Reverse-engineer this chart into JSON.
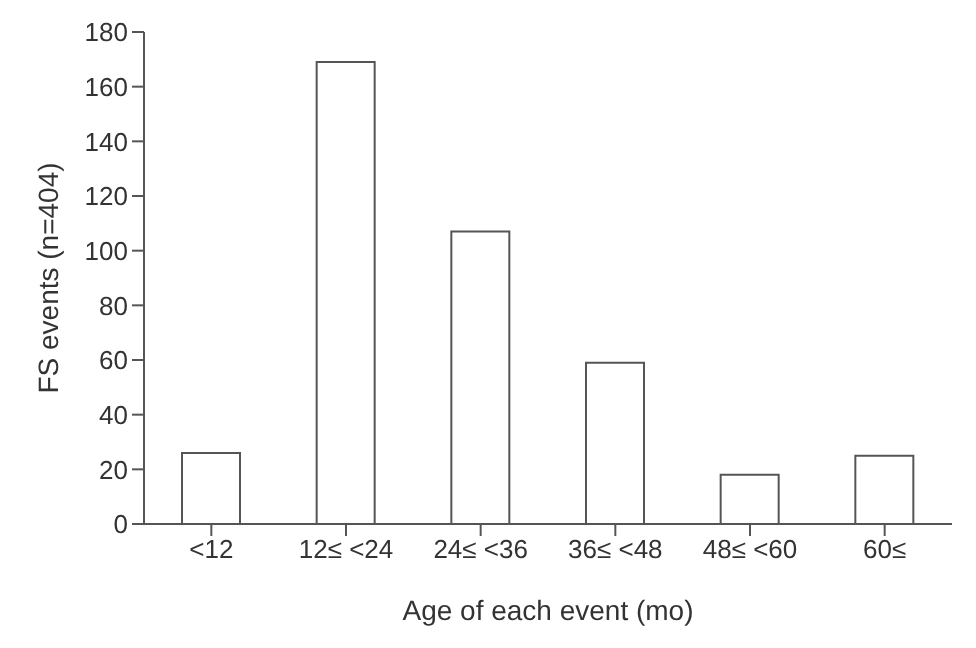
{
  "chart_data": {
    "type": "bar",
    "xlabel": "Age of each event (mo)",
    "ylabel": "FS events (n=404)",
    "categories": [
      "<12",
      "12≤ <24",
      "24≤ <36",
      "36≤ <48",
      "48≤ <60",
      "60≤"
    ],
    "values": [
      26,
      169,
      107,
      59,
      18,
      25
    ],
    "color": "#ffffff",
    "ylim": [
      0,
      180
    ],
    "yticks": [
      0,
      20,
      40,
      60,
      80,
      100,
      120,
      140,
      160,
      180
    ],
    "grid": false,
    "legend": false
  }
}
